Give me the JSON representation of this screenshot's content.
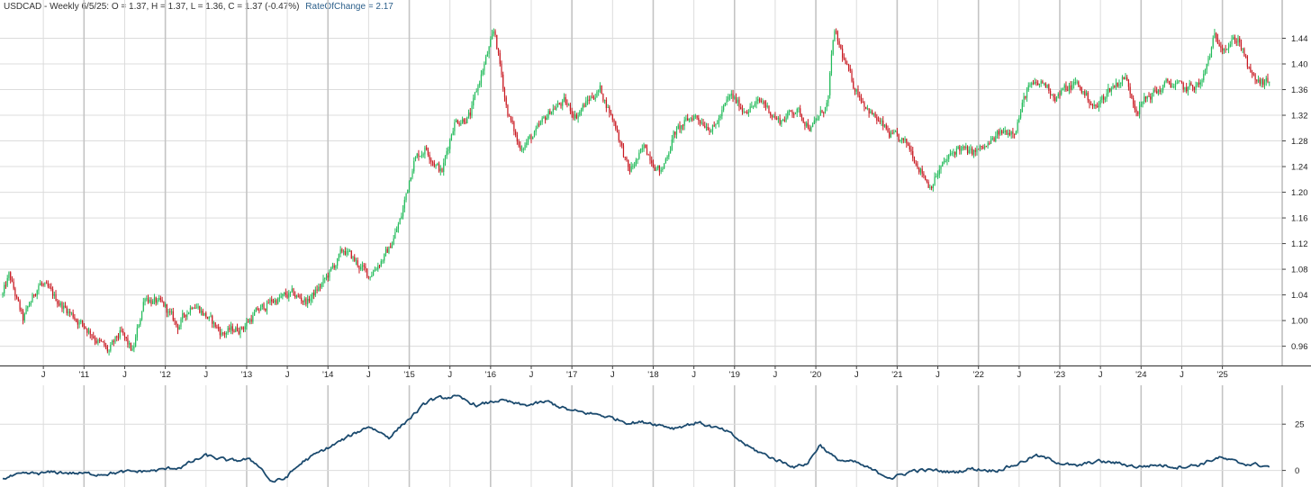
{
  "header": {
    "symbol_text": "USDCAD - Weekly 6/5/25:",
    "ohlc_text": "O = 1.37,  H = 1.37,  L = 1.36,  C = 1.37 (-0.47%)",
    "indicator_text": "RateOfChange = 2.17"
  },
  "colors": {
    "up": "#22bb5a",
    "down": "#c81820",
    "roc_line": "#1b4a6e",
    "grid": "#dcdcdc",
    "axis": "#444444"
  },
  "chart_data": [
    {
      "type": "candlestick",
      "title": "USDCAD - Weekly",
      "x_axis": {
        "start": 2010.0,
        "end": 2025.58,
        "tick_labels": [
          {
            "t": 2010.5,
            "label": "J"
          },
          {
            "t": 2011.0,
            "label": "'11"
          },
          {
            "t": 2011.5,
            "label": "J"
          },
          {
            "t": 2012.0,
            "label": "'12"
          },
          {
            "t": 2012.5,
            "label": "J"
          },
          {
            "t": 2013.0,
            "label": "'13"
          },
          {
            "t": 2013.5,
            "label": "J"
          },
          {
            "t": 2014.0,
            "label": "'14"
          },
          {
            "t": 2014.5,
            "label": "J"
          },
          {
            "t": 2015.0,
            "label": "'15"
          },
          {
            "t": 2015.5,
            "label": "J"
          },
          {
            "t": 2016.0,
            "label": "'16"
          },
          {
            "t": 2016.5,
            "label": "J"
          },
          {
            "t": 2017.0,
            "label": "'17"
          },
          {
            "t": 2017.5,
            "label": "J"
          },
          {
            "t": 2018.0,
            "label": "'18"
          },
          {
            "t": 2018.5,
            "label": "J"
          },
          {
            "t": 2019.0,
            "label": "'19"
          },
          {
            "t": 2019.5,
            "label": "J"
          },
          {
            "t": 2020.0,
            "label": "'20"
          },
          {
            "t": 2020.5,
            "label": "J"
          },
          {
            "t": 2021.0,
            "label": "'21"
          },
          {
            "t": 2021.5,
            "label": "J"
          },
          {
            "t": 2022.0,
            "label": "'22"
          },
          {
            "t": 2022.5,
            "label": "J"
          },
          {
            "t": 2023.0,
            "label": "'23"
          },
          {
            "t": 2023.5,
            "label": "J"
          },
          {
            "t": 2024.0,
            "label": "'24"
          },
          {
            "t": 2024.5,
            "label": "J"
          },
          {
            "t": 2025.0,
            "label": "'25"
          }
        ]
      },
      "y_axis": {
        "ylim": [
          0.93,
          1.48
        ],
        "ticks": [
          "0.96",
          "1.00",
          "1.04",
          "1.08",
          "1.12",
          "1.16",
          "1.20",
          "1.24",
          "1.28",
          "1.32",
          "1.36",
          "1.40",
          "1.44"
        ]
      },
      "grid": true,
      "anchors": [
        [
          2010.0,
          1.04
        ],
        [
          2010.08,
          1.07
        ],
        [
          2010.25,
          1.0
        ],
        [
          2010.45,
          1.06
        ],
        [
          2010.6,
          1.04
        ],
        [
          2010.85,
          1.01
        ],
        [
          2011.1,
          0.98
        ],
        [
          2011.3,
          0.95
        ],
        [
          2011.45,
          0.98
        ],
        [
          2011.6,
          0.95
        ],
        [
          2011.75,
          1.04
        ],
        [
          2011.85,
          1.03
        ],
        [
          2012.0,
          1.02
        ],
        [
          2012.15,
          0.99
        ],
        [
          2012.35,
          1.03
        ],
        [
          2012.55,
          1.0
        ],
        [
          2012.7,
          0.98
        ],
        [
          2012.95,
          0.99
        ],
        [
          2013.1,
          1.01
        ],
        [
          2013.3,
          1.03
        ],
        [
          2013.55,
          1.04
        ],
        [
          2013.75,
          1.03
        ],
        [
          2013.95,
          1.06
        ],
        [
          2014.2,
          1.11
        ],
        [
          2014.35,
          1.09
        ],
        [
          2014.5,
          1.07
        ],
        [
          2014.75,
          1.11
        ],
        [
          2014.9,
          1.16
        ],
        [
          2015.05,
          1.25
        ],
        [
          2015.2,
          1.27
        ],
        [
          2015.4,
          1.23
        ],
        [
          2015.55,
          1.31
        ],
        [
          2015.75,
          1.32
        ],
        [
          2015.9,
          1.39
        ],
        [
          2016.05,
          1.45
        ],
        [
          2016.2,
          1.33
        ],
        [
          2016.35,
          1.27
        ],
        [
          2016.55,
          1.29
        ],
        [
          2016.75,
          1.33
        ],
        [
          2016.9,
          1.34
        ],
        [
          2017.05,
          1.32
        ],
        [
          2017.25,
          1.35
        ],
        [
          2017.35,
          1.36
        ],
        [
          2017.55,
          1.3
        ],
        [
          2017.7,
          1.23
        ],
        [
          2017.9,
          1.27
        ],
        [
          2018.1,
          1.23
        ],
        [
          2018.25,
          1.29
        ],
        [
          2018.5,
          1.32
        ],
        [
          2018.75,
          1.3
        ],
        [
          2018.95,
          1.35
        ],
        [
          2019.1,
          1.33
        ],
        [
          2019.35,
          1.34
        ],
        [
          2019.55,
          1.31
        ],
        [
          2019.75,
          1.33
        ],
        [
          2019.95,
          1.3
        ],
        [
          2020.15,
          1.34
        ],
        [
          2020.22,
          1.45
        ],
        [
          2020.45,
          1.37
        ],
        [
          2020.7,
          1.32
        ],
        [
          2020.9,
          1.29
        ],
        [
          2021.15,
          1.27
        ],
        [
          2021.4,
          1.21
        ],
        [
          2021.55,
          1.24
        ],
        [
          2021.75,
          1.27
        ],
        [
          2021.9,
          1.26
        ],
        [
          2022.1,
          1.27
        ],
        [
          2022.25,
          1.29
        ],
        [
          2022.45,
          1.3
        ],
        [
          2022.6,
          1.36
        ],
        [
          2022.8,
          1.37
        ],
        [
          2022.95,
          1.35
        ],
        [
          2023.2,
          1.37
        ],
        [
          2023.45,
          1.33
        ],
        [
          2023.6,
          1.36
        ],
        [
          2023.8,
          1.38
        ],
        [
          2023.95,
          1.33
        ],
        [
          2024.1,
          1.35
        ],
        [
          2024.35,
          1.37
        ],
        [
          2024.55,
          1.36
        ],
        [
          2024.75,
          1.37
        ],
        [
          2024.9,
          1.44
        ],
        [
          2025.05,
          1.43
        ],
        [
          2025.2,
          1.44
        ],
        [
          2025.35,
          1.38
        ],
        [
          2025.45,
          1.37
        ],
        [
          2025.55,
          1.37
        ]
      ]
    },
    {
      "type": "line",
      "x_start": 2010.0,
      "x_end": 2025.58,
      "y_axis": {
        "ylim": [
          -7,
          46
        ],
        "ticks": [
          "0",
          "25"
        ]
      },
      "anchors": [
        [
          2010.0,
          -4
        ],
        [
          2010.3,
          -2
        ],
        [
          2010.7,
          -1
        ],
        [
          2011.1,
          -2
        ],
        [
          2011.5,
          -1
        ],
        [
          2011.9,
          0
        ],
        [
          2012.2,
          2
        ],
        [
          2012.5,
          8
        ],
        [
          2012.8,
          5
        ],
        [
          2013.0,
          6
        ],
        [
          2013.15,
          3
        ],
        [
          2013.3,
          -6
        ],
        [
          2013.45,
          -5
        ],
        [
          2013.7,
          5
        ],
        [
          2013.95,
          11
        ],
        [
          2014.25,
          18
        ],
        [
          2014.5,
          24
        ],
        [
          2014.75,
          18
        ],
        [
          2015.0,
          28
        ],
        [
          2015.25,
          38
        ],
        [
          2015.55,
          40
        ],
        [
          2015.85,
          35
        ],
        [
          2016.1,
          38
        ],
        [
          2016.4,
          35
        ],
        [
          2016.7,
          37
        ],
        [
          2017.0,
          32
        ],
        [
          2017.35,
          30
        ],
        [
          2017.7,
          26
        ],
        [
          2017.95,
          26
        ],
        [
          2018.25,
          23
        ],
        [
          2018.55,
          26
        ],
        [
          2018.9,
          21
        ],
        [
          2019.2,
          12
        ],
        [
          2019.5,
          6
        ],
        [
          2019.75,
          2
        ],
        [
          2019.9,
          4
        ],
        [
          2020.05,
          14
        ],
        [
          2020.25,
          6
        ],
        [
          2020.5,
          4
        ],
        [
          2020.75,
          -1
        ],
        [
          2020.95,
          -4
        ],
        [
          2021.2,
          0
        ],
        [
          2021.45,
          0
        ],
        [
          2021.7,
          -1
        ],
        [
          2021.9,
          1
        ],
        [
          2022.2,
          0
        ],
        [
          2022.45,
          3
        ],
        [
          2022.7,
          8
        ],
        [
          2022.95,
          5
        ],
        [
          2023.2,
          2
        ],
        [
          2023.45,
          5
        ],
        [
          2023.7,
          4
        ],
        [
          2023.95,
          2
        ],
        [
          2024.2,
          3
        ],
        [
          2024.45,
          2
        ],
        [
          2024.7,
          3
        ],
        [
          2024.95,
          7
        ],
        [
          2025.2,
          4
        ],
        [
          2025.45,
          3
        ],
        [
          2025.55,
          2.17
        ]
      ]
    }
  ]
}
